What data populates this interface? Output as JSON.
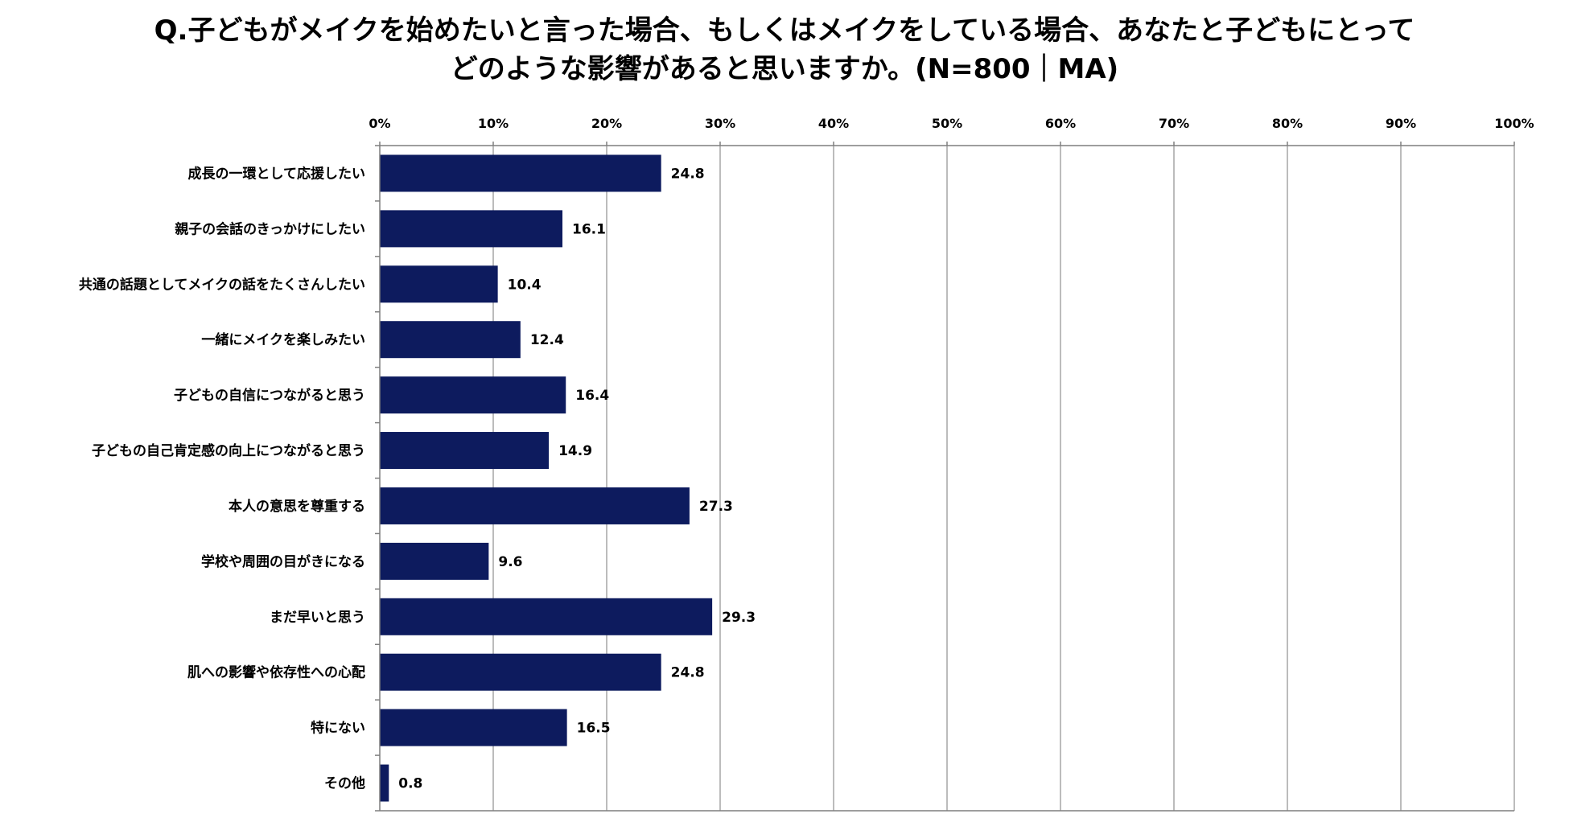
{
  "chart_data": {
    "type": "bar",
    "orientation": "horizontal",
    "title": {
      "line1": "Q.子どもがメイクを始めたいと言った場合、もしくはメイクをしている場合、あなたと子どもにとって",
      "line2": "どのような影響があると思いますか。(N=800｜MA)"
    },
    "categories": [
      "成長の一環として応援したい",
      "親子の会話のきっかけにしたい",
      "共通の話題としてメイクの話をたくさんしたい",
      "一緒にメイクを楽しみたい",
      "子どもの自信につながると思う",
      "子どもの自己肯定感の向上につながると思う",
      "本人の意思を尊重する",
      "学校や周囲の目がきになる",
      "まだ早いと思う",
      "肌への影響や依存性への心配",
      "特にない",
      "その他"
    ],
    "values": [
      24.8,
      16.1,
      10.4,
      12.4,
      16.4,
      14.9,
      27.3,
      9.6,
      29.3,
      24.8,
      16.5,
      0.8
    ],
    "data_labels": [
      "24.8",
      "16.1",
      "10.4",
      "12.4",
      "16.4",
      "14.9",
      "27.3",
      "9.6",
      "29.3",
      "24.8",
      "16.5",
      "0.8"
    ],
    "xlim": [
      0,
      100
    ],
    "x_ticks": [
      "0%",
      "10%",
      "20%",
      "30%",
      "40%",
      "50%",
      "60%",
      "70%",
      "80%",
      "90%",
      "100%"
    ],
    "x_axis_position": "top",
    "grid": true,
    "legend": "none",
    "colors": {
      "bar": "#0d1b5e",
      "grid": "#a6a6a6",
      "axis": "#7f7f7f"
    }
  }
}
